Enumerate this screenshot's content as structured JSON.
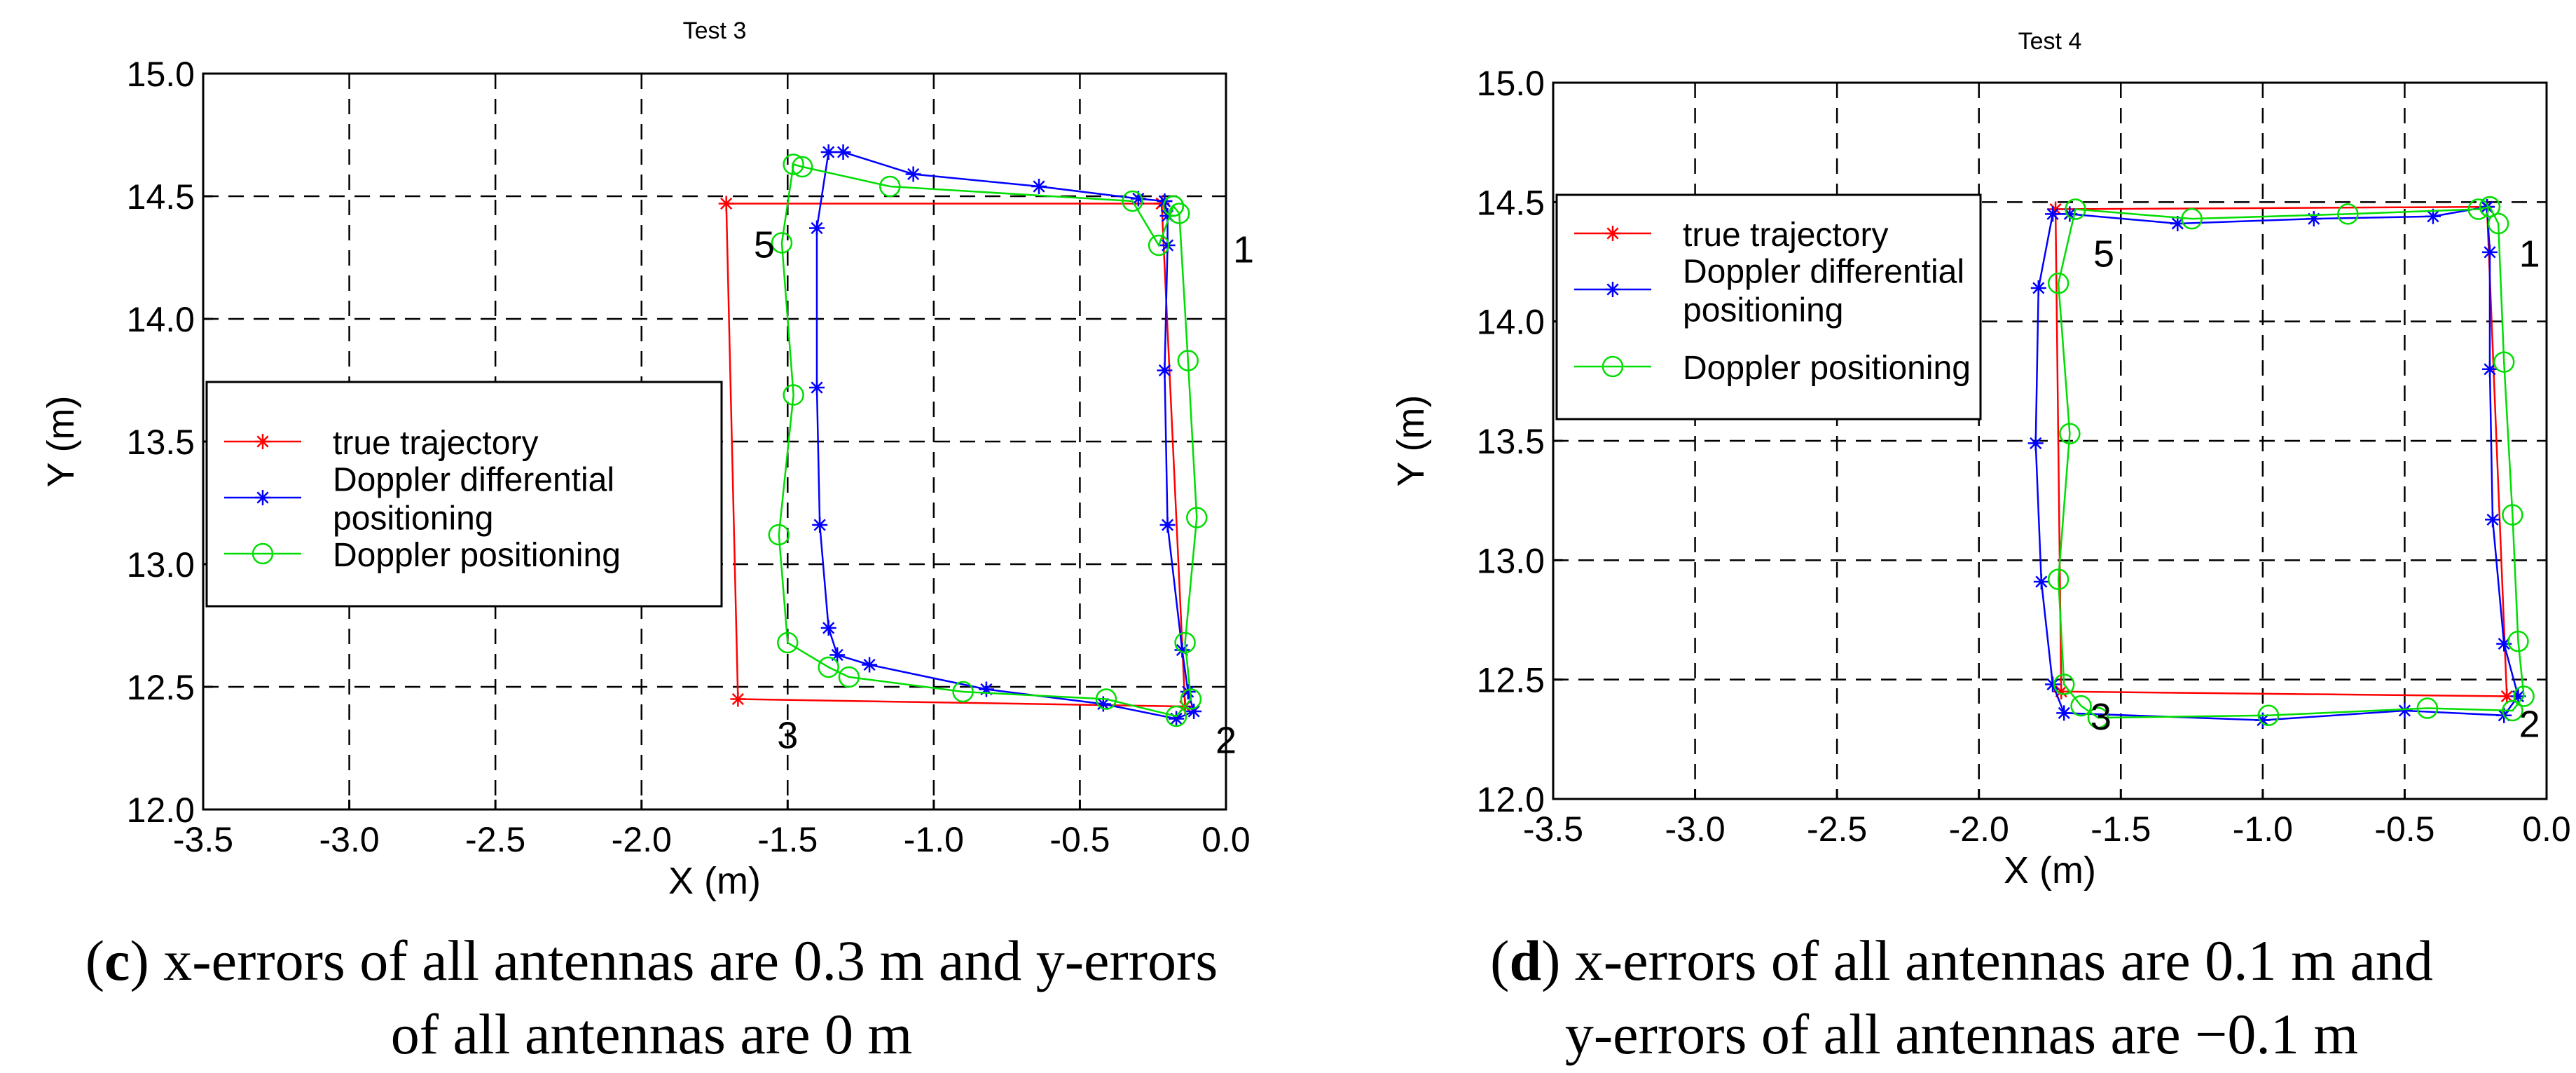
{
  "panels": [
    {
      "id": "c",
      "chart_data": {
        "type": "line",
        "title": "Test 3",
        "xlabel": "X (m)",
        "ylabel": "Y (m)",
        "xlim": [
          -3.5,
          0.0
        ],
        "ylim": [
          12.0,
          15.0
        ],
        "xticks": [
          -3.5,
          -3.0,
          -2.5,
          -2.0,
          -1.5,
          -1.0,
          -0.5,
          0.0
        ],
        "yticks": [
          12.0,
          12.5,
          13.0,
          13.5,
          14.0,
          14.5,
          15.0
        ],
        "xtick_labels": [
          "-3.5",
          "-3.0",
          "-2.5",
          "-2.0",
          "-1.5",
          "-1.0",
          "-0.5",
          "0.0"
        ],
        "ytick_labels": [
          "12.0",
          "12.5",
          "13.0",
          "13.5",
          "14.0",
          "14.5",
          "15.0"
        ],
        "grid": true,
        "legend_position": "center-left",
        "legend": [
          "true trajectory",
          "Doppler differential positioning",
          "Doppler positioning"
        ],
        "legend_lines": [
          [
            "true trajectory"
          ],
          [
            "Doppler differential",
            "positioning"
          ],
          [
            "Doppler positioning"
          ]
        ],
        "series": [
          {
            "name": "true trajectory",
            "color": "#ff0000",
            "marker": "star",
            "x": [
              -0.22,
              -0.14,
              -1.67,
              -1.71,
              -0.22
            ],
            "y": [
              14.47,
              12.42,
              12.45,
              14.47,
              14.47
            ]
          },
          {
            "name": "Doppler differential positioning",
            "color": "#0000ff",
            "marker": "star",
            "x": [
              -0.21,
              -0.2,
              -0.2,
              -0.21,
              -0.2,
              -0.15,
              -0.13,
              -0.11,
              -0.17,
              -0.42,
              -0.82,
              -1.22,
              -1.33,
              -1.36,
              -1.39,
              -1.4,
              -1.4,
              -1.36,
              -1.31,
              -1.07,
              -0.64,
              -0.3,
              -0.21
            ],
            "y": [
              14.48,
              14.42,
              14.3,
              13.79,
              13.16,
              12.65,
              12.48,
              12.4,
              12.37,
              12.43,
              12.49,
              12.59,
              12.63,
              12.74,
              13.16,
              13.72,
              14.37,
              14.68,
              14.68,
              14.59,
              14.54,
              14.49,
              14.48
            ]
          },
          {
            "name": "Doppler positioning",
            "color": "#00dd00",
            "marker": "circle",
            "x": [
              -0.18,
              -0.16,
              -0.13,
              -0.1,
              -0.14,
              -0.12,
              -0.17,
              -0.41,
              -0.9,
              -1.29,
              -1.36,
              -1.5,
              -1.53,
              -1.48,
              -1.52,
              -1.48,
              -1.45,
              -1.15,
              -0.32,
              -0.23,
              -0.18
            ],
            "y": [
              14.46,
              14.43,
              13.83,
              13.19,
              12.68,
              12.45,
              12.38,
              12.45,
              12.48,
              12.54,
              12.58,
              12.68,
              13.12,
              13.69,
              14.31,
              14.63,
              14.62,
              14.54,
              14.48,
              14.3,
              14.46
            ]
          }
        ],
        "annotations": [
          {
            "text": "1",
            "x": 0.06,
            "y": 14.23
          },
          {
            "text": "2",
            "x": 0.0,
            "y": 12.23
          },
          {
            "text": "3",
            "x": -1.5,
            "y": 12.25
          },
          {
            "text": "5",
            "x": -1.58,
            "y": 14.25
          }
        ]
      },
      "caption_label": "c",
      "caption_lines": [
        ") x-errors of all antennas are 0.3 m and y-errors",
        "of all antennas are 0 m"
      ]
    },
    {
      "id": "d",
      "chart_data": {
        "type": "line",
        "title": "Test 4",
        "xlabel": "X (m)",
        "ylabel": "Y (m)",
        "xlim": [
          -3.5,
          0.0
        ],
        "ylim": [
          12.0,
          15.0
        ],
        "xticks": [
          -3.5,
          -3.0,
          -2.5,
          -2.0,
          -1.5,
          -1.0,
          -0.5,
          0.0
        ],
        "yticks": [
          12.0,
          12.5,
          13.0,
          13.5,
          14.0,
          14.5,
          15.0
        ],
        "xtick_labels": [
          "-3.5",
          "-3.0",
          "-2.5",
          "-2.0",
          "-1.5",
          "-1.0",
          "-0.5",
          "0.0"
        ],
        "ytick_labels": [
          "12.0",
          "12.5",
          "13.0",
          "13.5",
          "14.0",
          "14.5",
          "15.0"
        ],
        "grid": true,
        "legend_position": "top-left",
        "legend": [
          "true trajectory",
          "Doppler differential positioning",
          "Doppler positioning"
        ],
        "legend_lines": [
          [
            "true trajectory"
          ],
          [
            "Doppler differential",
            " positioning"
          ],
          [
            "Doppler positioning"
          ]
        ],
        "series": [
          {
            "name": "true trajectory",
            "color": "#ff0000",
            "marker": "star",
            "x": [
              -0.21,
              -0.14,
              -1.71,
              -1.73,
              -0.21
            ],
            "y": [
              14.48,
              12.43,
              12.45,
              14.47,
              14.48
            ]
          },
          {
            "name": "Doppler differential positioning",
            "color": "#0000ff",
            "marker": "star",
            "x": [
              -0.21,
              -0.2,
              -0.2,
              -0.19,
              -0.15,
              -0.1,
              -0.15,
              -0.5,
              -1.0,
              -1.7,
              -1.74,
              -1.78,
              -1.8,
              -1.79,
              -1.74,
              -1.68,
              -1.3,
              -0.82,
              -0.4,
              -0.21
            ],
            "y": [
              14.48,
              14.29,
              13.8,
              13.17,
              12.65,
              12.43,
              12.35,
              12.37,
              12.33,
              12.36,
              12.48,
              12.91,
              13.49,
              14.14,
              14.45,
              14.45,
              14.41,
              14.43,
              14.44,
              14.48
            ]
          },
          {
            "name": "Doppler positioning",
            "color": "#00dd00",
            "marker": "circle",
            "x": [
              -0.2,
              -0.17,
              -0.15,
              -0.12,
              -0.1,
              -0.08,
              -0.12,
              -0.42,
              -0.98,
              -1.58,
              -1.64,
              -1.7,
              -1.72,
              -1.68,
              -1.72,
              -1.66,
              -1.25,
              -0.7,
              -0.24,
              -0.2
            ],
            "y": [
              14.48,
              14.41,
              13.83,
              13.19,
              12.66,
              12.43,
              12.37,
              12.38,
              12.35,
              12.34,
              12.39,
              12.48,
              12.92,
              13.53,
              14.16,
              14.47,
              14.43,
              14.45,
              14.47,
              14.48
            ]
          }
        ],
        "annotations": [
          {
            "text": "1",
            "x": -0.06,
            "y": 14.23
          },
          {
            "text": "2",
            "x": -0.06,
            "y": 12.26
          },
          {
            "text": "3",
            "x": -1.57,
            "y": 12.29
          },
          {
            "text": "5",
            "x": -1.56,
            "y": 14.23
          }
        ]
      },
      "caption_label": "d",
      "caption_lines": [
        ") x-errors of all antennas are 0.1 m and",
        "y-errors of all antennas are −0.1 m"
      ]
    }
  ]
}
